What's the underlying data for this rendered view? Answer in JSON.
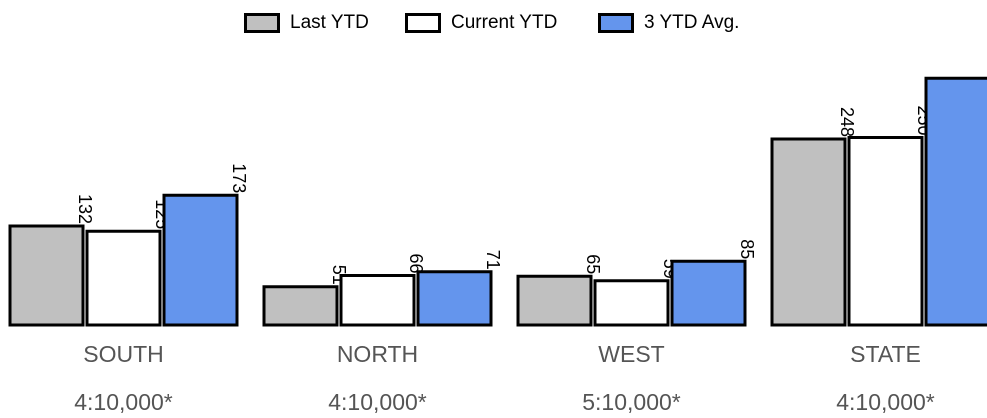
{
  "legend": {
    "items": [
      {
        "label": "Last YTD",
        "color": "#c0c0c0"
      },
      {
        "label": "Current YTD",
        "color": "#ffffff"
      },
      {
        "label": "3 YTD Avg.",
        "color": "#6495ed"
      }
    ]
  },
  "chart_data": {
    "type": "bar",
    "categories": [
      "SOUTH",
      "NORTH",
      "WEST",
      "STATE"
    ],
    "subtitles": [
      "4:10,000*",
      "4:10,000*",
      "5:10,000*",
      "4:10,000*"
    ],
    "series": [
      {
        "name": "Last YTD",
        "color": "#c0c0c0",
        "values": [
          132,
          51,
          65,
          248
        ]
      },
      {
        "name": "Current YTD",
        "color": "#ffffff",
        "values": [
          125,
          66,
          59,
          250
        ]
      },
      {
        "name": "3 YTD Avg.",
        "color": "#6495ed",
        "values": [
          173,
          71,
          85,
          329
        ]
      }
    ],
    "title": "",
    "xlabel": "",
    "ylabel": "",
    "grid": false,
    "legend_position": "top"
  }
}
